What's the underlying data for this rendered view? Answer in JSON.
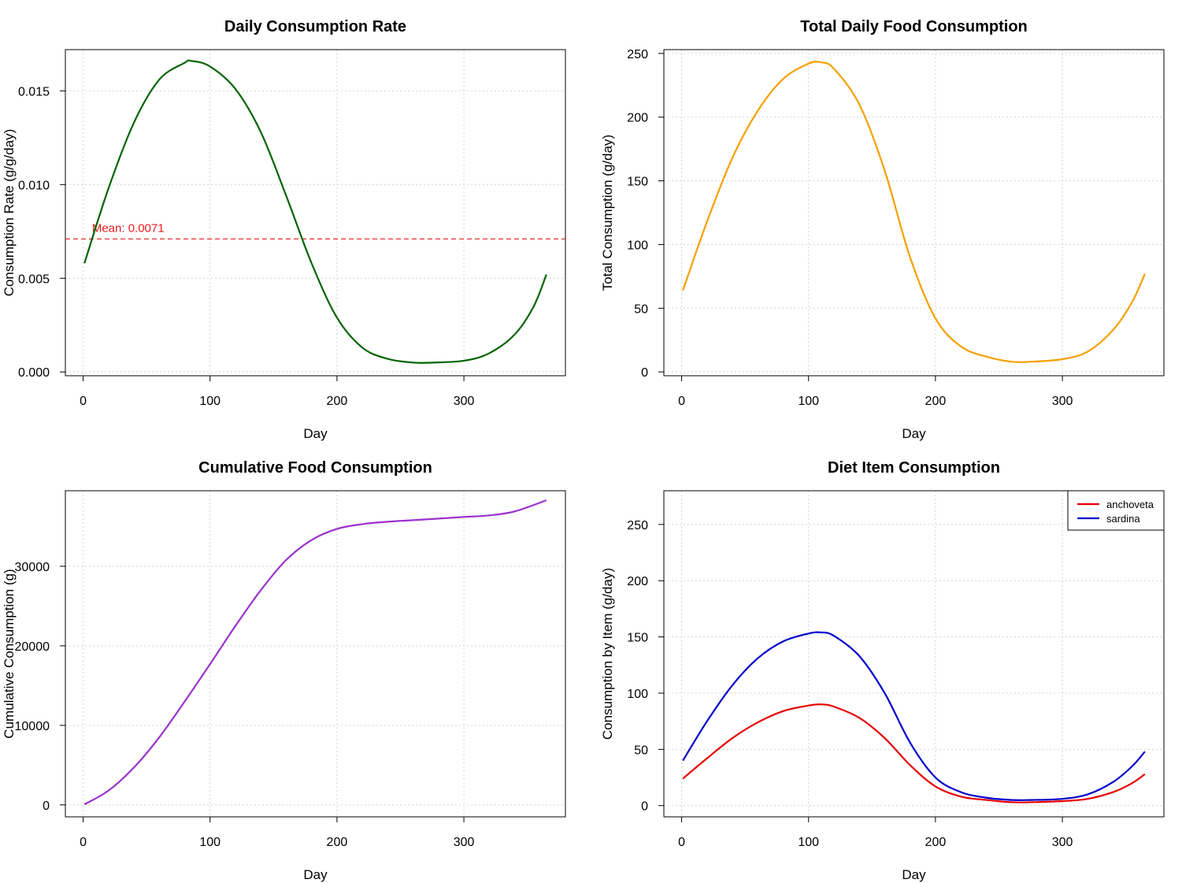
{
  "colors": {
    "rate_line": "#006400",
    "mean_line": "#e31a1c",
    "total_line": "#f5a000",
    "cumulative_line": "#9a32cd",
    "anchoveta": "#e60000",
    "sardina": "#0000cc",
    "grid": "#d3d3d3"
  },
  "chart_data": [
    {
      "type": "line",
      "title": "Daily Consumption Rate",
      "xlabel": "Day",
      "ylabel": "Consumption Rate (g/g/day)",
      "xlim": [
        -14,
        380
      ],
      "ylim": [
        -0.0002,
        0.0172
      ],
      "xticks": [
        0,
        100,
        200,
        300
      ],
      "yticks": [
        0.0,
        0.005,
        0.01,
        0.015
      ],
      "ytick_labels": [
        "0.000",
        "0.005",
        "0.010",
        "0.015"
      ],
      "grid": true,
      "series": [
        {
          "color_key": "rate_line",
          "x": [
            1,
            20,
            40,
            60,
            80,
            85,
            100,
            120,
            140,
            160,
            180,
            200,
            220,
            240,
            260,
            275,
            300,
            320,
            340,
            355,
            365
          ],
          "y": [
            0.0058,
            0.0098,
            0.0133,
            0.0156,
            0.0165,
            0.0166,
            0.0163,
            0.0151,
            0.0128,
            0.0094,
            0.0058,
            0.0029,
            0.0013,
            0.0007,
            0.0005,
            0.0005,
            0.0006,
            0.001,
            0.002,
            0.0035,
            0.0052
          ]
        }
      ],
      "hline": {
        "y": 0.0071,
        "label": "Mean: 0.0071",
        "color_key": "mean_line",
        "label_x": 7
      }
    },
    {
      "type": "line",
      "title": "Total Daily Food Consumption",
      "xlabel": "Day",
      "ylabel": "Total Consumption (g/day)",
      "xlim": [
        -14,
        380
      ],
      "ylim": [
        -3,
        253
      ],
      "xticks": [
        0,
        100,
        200,
        300
      ],
      "yticks": [
        0,
        50,
        100,
        150,
        200,
        250
      ],
      "ytick_labels": [
        "0",
        "50",
        "100",
        "150",
        "200",
        "250"
      ],
      "grid": true,
      "series": [
        {
          "color_key": "total_line",
          "x": [
            1,
            20,
            40,
            60,
            80,
            100,
            110,
            120,
            140,
            160,
            180,
            200,
            220,
            240,
            260,
            275,
            300,
            320,
            340,
            355,
            365
          ],
          "y": [
            64,
            118,
            168,
            205,
            230,
            242,
            243,
            238,
            210,
            158,
            90,
            42,
            20,
            12,
            8,
            8,
            10,
            16,
            33,
            55,
            77
          ]
        }
      ]
    },
    {
      "type": "line",
      "title": "Cumulative Food Consumption",
      "xlabel": "Day",
      "ylabel": "Cumulative Consumption (g)",
      "xlim": [
        -14,
        380
      ],
      "ylim": [
        -1500,
        39500
      ],
      "xticks": [
        0,
        100,
        200,
        300
      ],
      "yticks": [
        0,
        10000,
        20000,
        30000
      ],
      "ytick_labels": [
        "0",
        "10000",
        "20000",
        "30000"
      ],
      "grid": true,
      "series": [
        {
          "color_key": "cumulative_line",
          "x": [
            1,
            20,
            40,
            60,
            80,
            100,
            120,
            140,
            160,
            180,
            200,
            220,
            240,
            260,
            280,
            300,
            320,
            340,
            365
          ],
          "y": [
            64,
            1800,
            4700,
            8500,
            13000,
            17700,
            22500,
            27000,
            30800,
            33300,
            34700,
            35300,
            35600,
            35800,
            36000,
            36200,
            36400,
            36900,
            38300
          ]
        }
      ]
    },
    {
      "type": "line",
      "title": "Diet Item Consumption",
      "xlabel": "Day",
      "ylabel": "Consumption by Item (g/day)",
      "xlim": [
        -14,
        380
      ],
      "ylim": [
        -10,
        280
      ],
      "xticks": [
        0,
        100,
        200,
        300
      ],
      "yticks": [
        0,
        50,
        100,
        150,
        200,
        250
      ],
      "ytick_labels": [
        "0",
        "50",
        "100",
        "150",
        "200",
        "250"
      ],
      "grid": true,
      "legend": "top-right",
      "series": [
        {
          "name": "anchoveta",
          "color_key": "anchoveta",
          "x": [
            1,
            20,
            40,
            60,
            80,
            100,
            110,
            120,
            140,
            160,
            180,
            200,
            220,
            240,
            260,
            275,
            300,
            320,
            340,
            355,
            365
          ],
          "y": [
            24,
            42,
            60,
            74,
            84,
            89,
            90,
            88,
            78,
            60,
            36,
            17,
            8,
            5,
            3,
            3,
            4,
            6,
            12,
            20,
            28
          ]
        },
        {
          "name": "sardina",
          "color_key": "sardina",
          "x": [
            1,
            20,
            40,
            60,
            80,
            100,
            110,
            120,
            140,
            160,
            180,
            200,
            220,
            240,
            260,
            275,
            300,
            320,
            340,
            355,
            365
          ],
          "y": [
            40,
            75,
            107,
            131,
            146,
            153,
            154,
            151,
            133,
            100,
            56,
            25,
            12,
            7,
            5,
            5,
            6,
            10,
            21,
            35,
            48
          ]
        }
      ]
    }
  ]
}
